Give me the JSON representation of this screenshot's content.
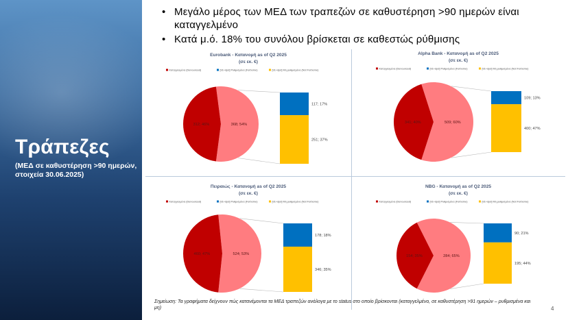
{
  "side": {
    "title": "Τράπεζες",
    "subtitle": "(ΜΕΔ σε καθυστέρηση >90 ημερών, στοιχεία 30.06.2025)"
  },
  "bullets": [
    "Μεγάλο μέρος των ΜΕΔ των τραπεζών σε καθυστέρηση >90 ημερών είναι καταγγελμένο",
    "Κατά μ.ό. 18% του συνόλου βρίσκεται σε καθεστώς ρύθμισης"
  ],
  "colors": {
    "denounced": "#c00000",
    "pie_rest": "#ff7c80",
    "forborne": "#0070c0",
    "not_forborne": "#ffc000"
  },
  "legend": [
    "Καταγγελμένα (Denounced)",
    "[91+dpd] Ρυθμισμένα (Forborne)",
    "[91+dpd] Μη ρυθμισμένα (Not Forborne)"
  ],
  "chart_data": [
    {
      "type": "bar-of-pie",
      "title": "Eurobank - Κατανομή as of Q2 2025",
      "subtitle": "(σε εκ. €)",
      "pie": [
        {
          "name": "Καταγγελμένα (Denounced)",
          "value": 312,
          "percent": 46,
          "label": "312; 46%"
        },
        {
          "name": "",
          "value": 368,
          "percent": 54,
          "label": "368; 54%"
        }
      ],
      "bar": [
        {
          "name": "[91+dpd] Ρυθμισμένα (Forborne)",
          "value": 117,
          "percent": 17,
          "label": "117; 17%"
        },
        {
          "name": "[91+dpd] Μη ρυθμισμένα (Not Forborne)",
          "value": 251,
          "percent": 37,
          "label": "251; 37%"
        }
      ]
    },
    {
      "type": "bar-of-pie",
      "title": "Alpha Bank - Κατανομή as of Q2 2025",
      "subtitle": "(σε εκ. €)",
      "pie": [
        {
          "name": "Καταγγελμένα (Denounced)",
          "value": 341,
          "percent": 40,
          "label": "341; 40%"
        },
        {
          "name": "",
          "value": 509,
          "percent": 60,
          "label": "509; 60%"
        }
      ],
      "bar": [
        {
          "name": "[91+dpd] Ρυθμισμένα (Forborne)",
          "value": 109,
          "percent": 13,
          "label": "109; 13%"
        },
        {
          "name": "[91+dpd] Μη ρυθμισμένα (Not Forborne)",
          "value": 400,
          "percent": 47,
          "label": "400; 47%"
        }
      ]
    },
    {
      "type": "bar-of-pie",
      "title": "Πειραιώς - Κατανομή as of Q2 2025",
      "subtitle": "(σε εκ. €)",
      "pie": [
        {
          "name": "Καταγγελμένα (Denounced)",
          "value": 460,
          "percent": 47,
          "label": "460; 47%"
        },
        {
          "name": "",
          "value": 524,
          "percent": 53,
          "label": "524; 53%"
        }
      ],
      "bar": [
        {
          "name": "[91+dpd] Ρυθμισμένα (Forborne)",
          "value": 178,
          "percent": 18,
          "label": "178; 18%"
        },
        {
          "name": "[91+dpd] Μη ρυθμισμένα (Not Forborne)",
          "value": 346,
          "percent": 35,
          "label": "346; 35%"
        }
      ]
    },
    {
      "type": "bar-of-pie",
      "title": "NBG - Κατανομή as of Q2 2025",
      "subtitle": "(σε εκ. €)",
      "pie": [
        {
          "name": "Καταγγελμένα (Denounced)",
          "value": 154,
          "percent": 35,
          "label": "154; 35%"
        },
        {
          "name": "",
          "value": 284,
          "percent": 65,
          "label": "284; 65%"
        }
      ],
      "bar": [
        {
          "name": "[91+dpd] Ρυθμισμένα (Forborne)",
          "value": 90,
          "percent": 21,
          "label": "90; 21%"
        },
        {
          "name": "[91+dpd] Μη ρυθμισμένα (Not Forborne)",
          "value": 195,
          "percent": 44,
          "label": "195; 44%"
        }
      ]
    }
  ],
  "footnote": "Σημείωση: Τα γραφήματα δείχνουν πώς κατανέμονται τα ΜΕΔ τραπεζών ανάλογα με το status στο οποίο βρίσκονται (καταγγελμένο, σε καθυστέρηση >91 ημερών – ρυθμισμένα και μη)",
  "page_number": "4"
}
